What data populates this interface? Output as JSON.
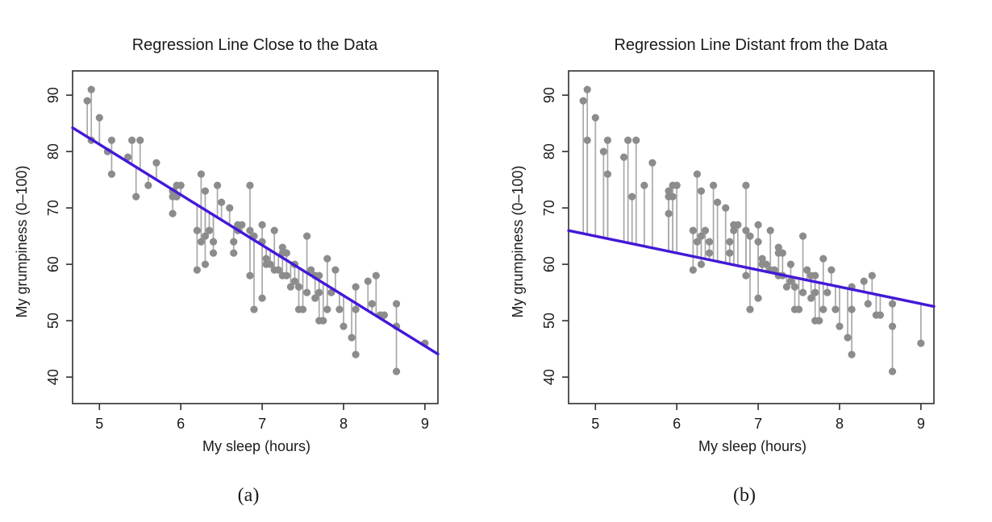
{
  "colors": {
    "regression_line": "#4318d8",
    "point_fill": "#8c8c8c",
    "residual_stem": "#a9a9a9",
    "frame": "#2e2e2e",
    "text": "#1a1a1a"
  },
  "chart_data": {
    "type": "scatter",
    "description": "Same scatter of 90+ observations shown twice; vertical grey segments are residuals from each point to the plotted regression line.",
    "x_axis": {
      "label": "My sleep (hours)",
      "ticks": [
        5,
        6,
        7,
        8,
        9
      ],
      "range": [
        4.67,
        9.16
      ]
    },
    "y_axis": {
      "label": "My grumpiness (0–100)",
      "ticks": [
        40,
        50,
        60,
        70,
        80,
        90
      ],
      "range": [
        35.3,
        94.3
      ]
    },
    "points": [
      [
        4.85,
        89
      ],
      [
        4.9,
        91
      ],
      [
        5.0,
        86
      ],
      [
        4.9,
        82
      ],
      [
        5.15,
        82
      ],
      [
        5.1,
        80
      ],
      [
        5.35,
        79
      ],
      [
        5.15,
        76
      ],
      [
        5.4,
        82
      ],
      [
        5.5,
        82
      ],
      [
        5.45,
        72
      ],
      [
        5.6,
        74
      ],
      [
        5.7,
        78
      ],
      [
        5.9,
        73
      ],
      [
        5.9,
        72
      ],
      [
        5.95,
        74
      ],
      [
        6.0,
        74
      ],
      [
        5.95,
        72
      ],
      [
        5.9,
        69
      ],
      [
        6.2,
        66
      ],
      [
        6.25,
        76
      ],
      [
        6.3,
        73
      ],
      [
        6.45,
        74
      ],
      [
        6.5,
        71
      ],
      [
        6.6,
        70
      ],
      [
        6.2,
        59
      ],
      [
        6.3,
        60
      ],
      [
        6.25,
        64
      ],
      [
        6.3,
        65
      ],
      [
        6.35,
        66
      ],
      [
        6.4,
        64
      ],
      [
        6.4,
        62
      ],
      [
        6.65,
        62
      ],
      [
        6.65,
        64
      ],
      [
        6.7,
        67
      ],
      [
        6.75,
        67
      ],
      [
        6.7,
        66
      ],
      [
        6.85,
        74
      ],
      [
        6.85,
        66
      ],
      [
        6.9,
        65
      ],
      [
        7.0,
        67
      ],
      [
        7.0,
        64
      ],
      [
        6.85,
        58
      ],
      [
        6.9,
        52
      ],
      [
        7.0,
        54
      ],
      [
        7.05,
        61
      ],
      [
        7.05,
        60
      ],
      [
        7.1,
        60
      ],
      [
        7.15,
        66
      ],
      [
        7.15,
        59
      ],
      [
        7.2,
        59
      ],
      [
        7.25,
        63
      ],
      [
        7.25,
        62
      ],
      [
        7.3,
        62
      ],
      [
        7.25,
        58
      ],
      [
        7.3,
        58
      ],
      [
        7.35,
        56
      ],
      [
        7.4,
        60
      ],
      [
        7.4,
        57
      ],
      [
        7.45,
        56
      ],
      [
        7.45,
        52
      ],
      [
        7.5,
        52
      ],
      [
        7.55,
        65
      ],
      [
        7.55,
        55
      ],
      [
        7.6,
        59
      ],
      [
        7.65,
        58
      ],
      [
        7.65,
        54
      ],
      [
        7.7,
        58
      ],
      [
        7.7,
        55
      ],
      [
        7.7,
        50
      ],
      [
        7.75,
        50
      ],
      [
        7.8,
        61
      ],
      [
        7.8,
        52
      ],
      [
        7.9,
        59
      ],
      [
        7.85,
        55
      ],
      [
        7.95,
        52
      ],
      [
        8.0,
        49
      ],
      [
        8.1,
        47
      ],
      [
        8.15,
        56
      ],
      [
        8.15,
        52
      ],
      [
        8.15,
        44
      ],
      [
        8.3,
        57
      ],
      [
        8.4,
        58
      ],
      [
        8.35,
        53
      ],
      [
        8.45,
        51
      ],
      [
        8.5,
        51
      ],
      [
        8.65,
        53
      ],
      [
        8.65,
        49
      ],
      [
        8.65,
        41
      ],
      [
        9.0,
        46
      ]
    ],
    "panels": [
      {
        "title": "Regression Line Close to the Data",
        "caption": "(a)",
        "regression_line": {
          "intercept": 125.97,
          "slope": -8.94
        },
        "shows_residuals": true
      },
      {
        "title": "Regression Line Distant from the Data",
        "caption": "(b)",
        "regression_line": {
          "intercept": 80,
          "slope": -3
        },
        "shows_residuals": true
      }
    ]
  }
}
